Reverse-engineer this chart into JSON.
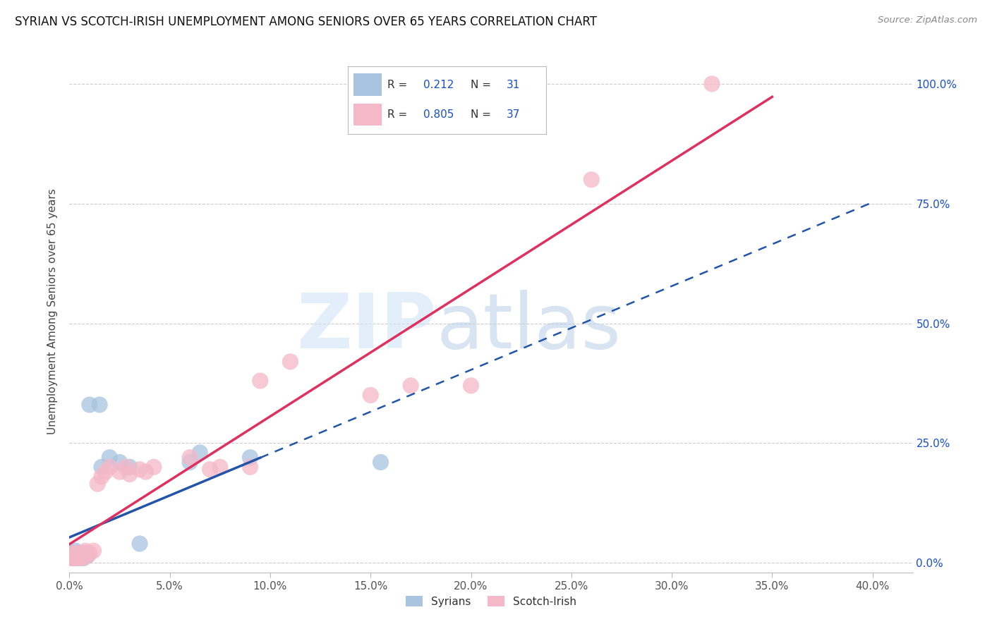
{
  "title": "SYRIAN VS SCOTCH-IRISH UNEMPLOYMENT AMONG SENIORS OVER 65 YEARS CORRELATION CHART",
  "source": "Source: ZipAtlas.com",
  "ylabel": "Unemployment Among Seniors over 65 years",
  "xlim": [
    0.0,
    0.42
  ],
  "ylim": [
    -0.02,
    1.07
  ],
  "x_tick_vals": [
    0.0,
    0.05,
    0.1,
    0.15,
    0.2,
    0.25,
    0.3,
    0.35,
    0.4
  ],
  "x_tick_labels": [
    "0.0%",
    "5.0%",
    "10.0%",
    "15.0%",
    "20.0%",
    "25.0%",
    "30.0%",
    "35.0%",
    "40.0%"
  ],
  "y_tick_vals": [
    0.0,
    0.25,
    0.5,
    0.75,
    1.0
  ],
  "y_tick_labels": [
    "0.0%",
    "25.0%",
    "50.0%",
    "75.0%",
    "100.0%"
  ],
  "syrians_x": [
    0.001,
    0.001,
    0.002,
    0.002,
    0.002,
    0.003,
    0.003,
    0.003,
    0.004,
    0.004,
    0.005,
    0.005,
    0.005,
    0.006,
    0.006,
    0.007,
    0.007,
    0.008,
    0.008,
    0.009,
    0.01,
    0.015,
    0.016,
    0.02,
    0.025,
    0.03,
    0.035,
    0.06,
    0.065,
    0.09,
    0.155
  ],
  "syrians_y": [
    0.01,
    0.02,
    0.01,
    0.015,
    0.02,
    0.01,
    0.02,
    0.025,
    0.01,
    0.02,
    0.015,
    0.01,
    0.02,
    0.015,
    0.02,
    0.01,
    0.02,
    0.015,
    0.02,
    0.015,
    0.33,
    0.33,
    0.2,
    0.22,
    0.21,
    0.2,
    0.04,
    0.21,
    0.23,
    0.22,
    0.21
  ],
  "scotch_irish_x": [
    0.001,
    0.002,
    0.002,
    0.003,
    0.003,
    0.004,
    0.004,
    0.005,
    0.005,
    0.006,
    0.007,
    0.008,
    0.008,
    0.009,
    0.01,
    0.012,
    0.014,
    0.016,
    0.018,
    0.02,
    0.025,
    0.028,
    0.03,
    0.035,
    0.038,
    0.042,
    0.06,
    0.07,
    0.075,
    0.09,
    0.095,
    0.11,
    0.15,
    0.17,
    0.2,
    0.26,
    0.32
  ],
  "scotch_irish_y": [
    0.01,
    0.01,
    0.02,
    0.01,
    0.015,
    0.01,
    0.02,
    0.01,
    0.02,
    0.015,
    0.01,
    0.02,
    0.025,
    0.015,
    0.02,
    0.025,
    0.165,
    0.18,
    0.19,
    0.2,
    0.19,
    0.2,
    0.185,
    0.195,
    0.19,
    0.2,
    0.22,
    0.195,
    0.2,
    0.2,
    0.38,
    0.42,
    0.35,
    0.37,
    0.37,
    0.8,
    1.0
  ],
  "syrian_color": "#a8c4e0",
  "scotch_irish_color": "#f4b8c8",
  "syrian_line_color": "#2255aa",
  "scotch_irish_line_color": "#e03060",
  "legend_color": "#1a4fcc",
  "syrian_R": "0.212",
  "syrian_N": "31",
  "scotch_irish_R": "0.805",
  "scotch_irish_N": "37",
  "syrian_line_x_end": 0.095,
  "scotch_irish_line_x_end": 0.35,
  "grid_color": "#cccccc",
  "tick_color": "#888888",
  "background_color": "#ffffff"
}
